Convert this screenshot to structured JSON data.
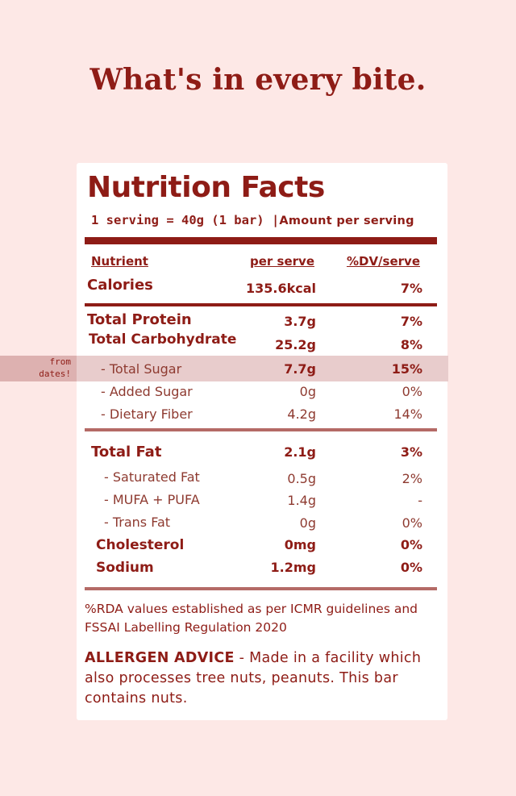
{
  "headline": "What's in every bite.",
  "label": {
    "title": "Nutrition Facts",
    "serving": "1 serving = 40g (1 bar)",
    "separator": "|",
    "amount_per_serving": "Amount per serving",
    "columns": {
      "nutrient": "Nutrient",
      "per_serve": "per serve",
      "dv": "%DV/serve"
    },
    "calories": {
      "name": "Calories",
      "value": "135.6kcal",
      "dv": "7%"
    },
    "protein": {
      "name": "Total Protein",
      "value": "3.7g",
      "dv": "7%"
    },
    "carbs": {
      "name": "Total Carbohydrate",
      "value": "25.2g",
      "dv": "8%"
    },
    "sugar": {
      "name": "- Total Sugar",
      "value": "7.7g",
      "dv": "15%",
      "note": "from dates!"
    },
    "added_sugar": {
      "name": "- Added Sugar",
      "value": "0g",
      "dv": "0%"
    },
    "fiber": {
      "name": "- Dietary Fiber",
      "value": "4.2g",
      "dv": "14%"
    },
    "fat": {
      "name": "Total Fat",
      "value": "2.1g",
      "dv": "3%"
    },
    "sat_fat": {
      "name": "- Saturated Fat",
      "value": "0.5g",
      "dv": "2%"
    },
    "mufa_pufa": {
      "name": "- MUFA + PUFA",
      "value": "1.4g",
      "dv": "-"
    },
    "trans_fat": {
      "name": "- Trans Fat",
      "value": "0g",
      "dv": "0%"
    },
    "cholesterol": {
      "name": "Cholesterol",
      "value": "0mg",
      "dv": "0%"
    },
    "sodium": {
      "name": "Sodium",
      "value": "1.2mg",
      "dv": "0%"
    }
  },
  "footnote": "%RDA values established as per ICMR guidelines and FSSAI Labelling Regulation 2020",
  "allergen": {
    "label": "ALLERGEN ADVICE",
    "text": " - Made in a facility which also processes tree nuts, peanuts. This bar contains nuts."
  },
  "colors": {
    "background": "#fde8e6",
    "brand": "#8e1c16",
    "highlight": "#e8cccc"
  }
}
